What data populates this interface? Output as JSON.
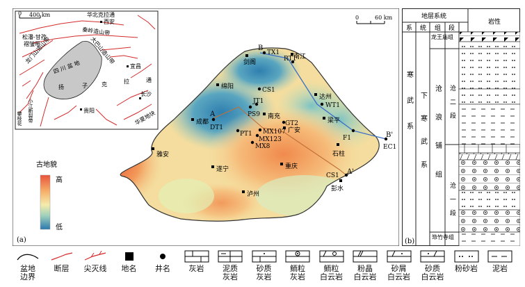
{
  "panel_a": {
    "label": "(a)",
    "inset": {
      "scale_label": "400 km",
      "places": [
        "华北克拉通",
        "西安",
        "秦岭造山带",
        "松潘-甘孜",
        "褶皱带",
        "龙门山造山带",
        "四 川 盆 地",
        "大巴山造山带",
        "宜昌",
        "扬",
        "子",
        "克",
        "拉",
        "通",
        "长沙",
        "小江断裂带",
        "攀枝花",
        "贵阳",
        "华夏地块"
      ]
    },
    "map_scale": {
      "zero": "0",
      "label": "60 km"
    },
    "cities": [
      "剑阁",
      "南江",
      "绵阳",
      "达州",
      "成都",
      "南充",
      "梁平",
      "广安",
      "雅安",
      "石柱",
      "遂宁",
      "重庆",
      "泸州",
      "彭水"
    ],
    "wells": [
      "TX1",
      "RT1",
      "CS1",
      "JT1",
      "PS9",
      "WT1",
      "DT1",
      "PT1",
      "MX107",
      "GT2",
      "MX123",
      "MX8",
      "F1",
      "EC1",
      "CS1"
    ],
    "section_points": [
      "B",
      "B'",
      "A",
      "A'"
    ],
    "palaeo_legend": {
      "title": "古地貌",
      "high": "高",
      "low": "低"
    }
  },
  "panel_b": {
    "label": "(b)",
    "header": {
      "system_group": "地层系统",
      "lithology": "岩性",
      "columns": [
        "系",
        "统",
        "组",
        "段"
      ]
    },
    "system": "寒 武 系",
    "series": "下 寒 武 系",
    "groups": [
      {
        "name": "龙王庙组"
      },
      {
        "name": "沧 浪 铺 组"
      },
      {
        "name": "筇竹寺组"
      }
    ],
    "members": [
      "沧 二 段",
      "沧 一 段"
    ]
  },
  "legend": [
    {
      "label": "盆地\n边界",
      "icon": "basin-boundary"
    },
    {
      "label": "断层",
      "icon": "fault"
    },
    {
      "label": "尖灭线",
      "icon": "pinchout-line"
    },
    {
      "label": "地名",
      "icon": "square-place"
    },
    {
      "label": "井名",
      "icon": "dot-well"
    },
    {
      "label": "灰岩",
      "icon": "limestone"
    },
    {
      "label": "泥质\n灰岩",
      "icon": "argillaceous-limestone"
    },
    {
      "label": "砂质\n灰岩",
      "icon": "sandy-limestone"
    },
    {
      "label": "鲕粒\n灰岩",
      "icon": "oolitic-limestone"
    },
    {
      "label": "鲕粒\n白云岩",
      "icon": "oolitic-dolomite"
    },
    {
      "label": "粉晶\n白云岩",
      "icon": "crystalline-dolomite"
    },
    {
      "label": "砂屑\n白云岩",
      "icon": "sandy-dolomite-a"
    },
    {
      "label": "砂质\n白云岩",
      "icon": "sandy-dolomite-b"
    },
    {
      "label": "粉砂岩",
      "icon": "siltstone"
    },
    {
      "label": "泥岩",
      "icon": "mudstone"
    }
  ]
}
